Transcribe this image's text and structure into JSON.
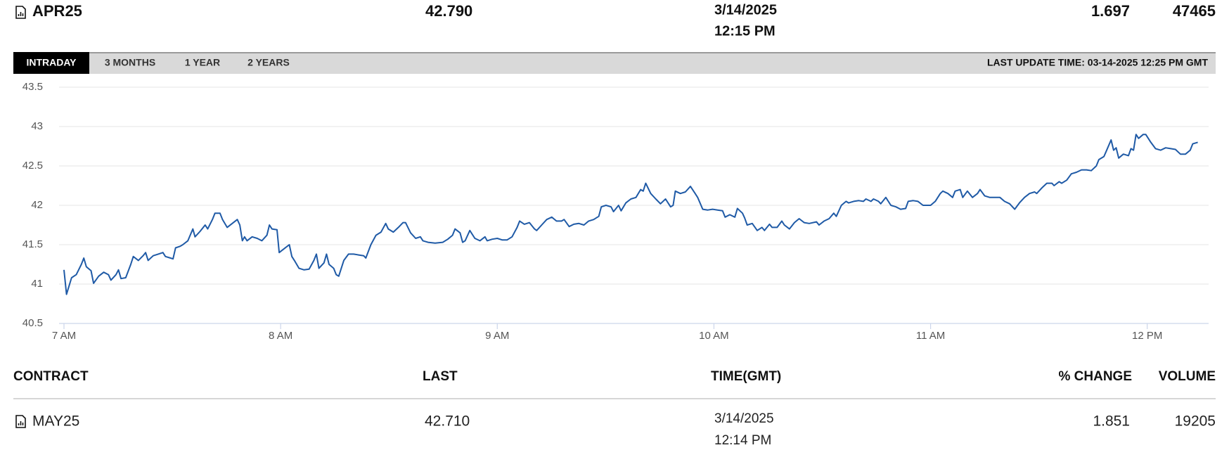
{
  "quote": {
    "contract": "APR25",
    "last": "42.790",
    "time_date": "3/14/2025",
    "time_clock": "12:15 PM",
    "change": "1.697",
    "volume": "47465"
  },
  "tabs": [
    "INTRADAY",
    "3 MONTHS",
    "1 YEAR",
    "2 YEARS"
  ],
  "last_update": "LAST UPDATE TIME: 03-14-2025 12:25 PM GMT",
  "chart_data": {
    "type": "line",
    "color": "#1f5aa6",
    "grid": true,
    "x": [
      420,
      420.7,
      422.1,
      423.4,
      424.8,
      425.5,
      426.2,
      427.5,
      428.2,
      429.6,
      431,
      432.3,
      433,
      434.4,
      435.1,
      435.8,
      437.1,
      438.5,
      439.2,
      440.6,
      441.9,
      442.6,
      443.3,
      444.7,
      446.1,
      447.4,
      448.1,
      449.5,
      450.2,
      450.9,
      452.2,
      452.9,
      454.3,
      455.7,
      456.3,
      457.7,
      459.1,
      459.8,
      461.1,
      461.8,
      463.2,
      463.9,
      465.2,
      466.6,
      468,
      468.7,
      469.4,
      470,
      470.7,
      472.1,
      473.5,
      474.8,
      476.2,
      476.9,
      477.6,
      479,
      479.6,
      481,
      482.4,
      483.1,
      483.8,
      485.1,
      486.5,
      487.9,
      489.2,
      489.9,
      490.6,
      492,
      492.7,
      493.4,
      494.7,
      495.4,
      496.1,
      497.5,
      498.8,
      500.2,
      501.6,
      503,
      503.6,
      505,
      506.4,
      507.8,
      509.1,
      509.8,
      511.2,
      512.6,
      513.9,
      514.6,
      516,
      517.4,
      518.7,
      519.4,
      520.8,
      522.8,
      524.9,
      526.3,
      527.6,
      528.3,
      529.7,
      530.4,
      531.1,
      532.4,
      533.8,
      535.2,
      536.6,
      537.2,
      538.6,
      540,
      541.4,
      542.7,
      544.1,
      545.5,
      546.2,
      547.5,
      548.9,
      550.3,
      550.9,
      552.3,
      553.7,
      555.1,
      556.4,
      557.8,
      558.5,
      559.9,
      561.2,
      562.6,
      564,
      565.3,
      566.7,
      568.1,
      568.8,
      570.1,
      571.5,
      572.2,
      573.6,
      574.3,
      575.6,
      577,
      578.4,
      579.7,
      580.4,
      581.1,
      582.5,
      583.9,
      585.2,
      586.6,
      588,
      588.7,
      589.3,
      590.7,
      592.1,
      593.5,
      594.8,
      595.5,
      596.9,
      598.3,
      599.6,
      601,
      602.4,
      603.1,
      604.4,
      605.8,
      606.5,
      607.9,
      608.5,
      609.2,
      610.6,
      612,
      613.3,
      614,
      615.4,
      616.1,
      617.5,
      618.8,
      619.5,
      620.9,
      622.3,
      623.6,
      625,
      626.4,
      628.4,
      629.1,
      630.5,
      631.9,
      633.2,
      633.9,
      635.3,
      636.6,
      637.3,
      638.7,
      640.1,
      641.4,
      642.1,
      643.5,
      644.2,
      645.6,
      646.2,
      647.6,
      649,
      650.4,
      651.7,
      653.1,
      653.8,
      655.2,
      656.5,
      657.9,
      660,
      661.3,
      662.7,
      663.4,
      664.8,
      666.1,
      666.8,
      668.2,
      668.9,
      670.2,
      671.6,
      673,
      673.7,
      675,
      676.4,
      677.8,
      679.2,
      680.5,
      681.9,
      683.3,
      684.6,
      686,
      687.4,
      688.8,
      689.4,
      690.8,
      692.2,
      693.6,
      694.2,
      695.6,
      696.3,
      697.7,
      699,
      700.4,
      701.8,
      703.2,
      704.5,
      705.9,
      706.6,
      708,
      708.6,
      710,
      710.7,
      711.4,
      712.1,
      713.4,
      714.8,
      715.5,
      716.2,
      716.9,
      717.6,
      718.9,
      719.6,
      721,
      722.3,
      723.7,
      725.1,
      726.5,
      727.8,
      729.2,
      730.6,
      731.9,
      732.6,
      734
    ],
    "values": [
      41.18,
      40.87,
      41.08,
      41.12,
      41.25,
      41.33,
      41.22,
      41.17,
      41.01,
      41.1,
      41.15,
      41.12,
      41.05,
      41.12,
      41.18,
      41.07,
      41.08,
      41.25,
      41.35,
      41.3,
      41.36,
      41.4,
      41.3,
      41.36,
      41.38,
      41.4,
      41.35,
      41.33,
      41.32,
      41.46,
      41.48,
      41.5,
      41.55,
      41.7,
      41.6,
      41.67,
      41.75,
      41.7,
      41.82,
      41.9,
      41.9,
      41.82,
      41.72,
      41.77,
      41.82,
      41.75,
      41.55,
      41.6,
      41.55,
      41.6,
      41.58,
      41.55,
      41.62,
      41.75,
      41.7,
      41.69,
      41.4,
      41.45,
      41.5,
      41.35,
      41.3,
      41.2,
      41.18,
      41.19,
      41.3,
      41.38,
      41.2,
      41.27,
      41.38,
      41.25,
      41.2,
      41.12,
      41.1,
      41.3,
      41.38,
      41.38,
      41.37,
      41.36,
      41.33,
      41.5,
      41.62,
      41.66,
      41.77,
      41.7,
      41.66,
      41.72,
      41.78,
      41.78,
      41.65,
      41.58,
      41.6,
      41.55,
      41.53,
      41.52,
      41.53,
      41.57,
      41.62,
      41.7,
      41.65,
      41.53,
      41.55,
      41.68,
      41.58,
      41.55,
      41.6,
      41.55,
      41.57,
      41.58,
      41.56,
      41.56,
      41.6,
      41.72,
      41.8,
      41.76,
      41.78,
      41.7,
      41.68,
      41.75,
      41.82,
      41.85,
      41.8,
      41.8,
      41.82,
      41.73,
      41.76,
      41.77,
      41.75,
      41.8,
      41.82,
      41.86,
      41.98,
      42,
      41.98,
      41.92,
      42,
      41.93,
      42.03,
      42.08,
      42.1,
      42.2,
      42.18,
      42.28,
      42.15,
      42.08,
      42.02,
      42.08,
      41.98,
      42,
      42.18,
      42.15,
      42.17,
      42.24,
      42.15,
      42.1,
      41.95,
      41.94,
      41.95,
      41.94,
      41.93,
      41.85,
      41.88,
      41.85,
      41.96,
      41.9,
      41.84,
      41.75,
      41.77,
      41.68,
      41.72,
      41.68,
      41.76,
      41.72,
      41.72,
      41.8,
      41.75,
      41.7,
      41.78,
      41.83,
      41.78,
      41.77,
      41.79,
      41.75,
      41.8,
      41.83,
      41.9,
      41.86,
      42,
      42.05,
      42.03,
      42.05,
      42.06,
      42.05,
      42.08,
      42.05,
      42.08,
      42.05,
      42.02,
      42.1,
      42,
      41.98,
      41.95,
      41.96,
      42.05,
      42.06,
      42.05,
      42,
      42,
      42.05,
      42.15,
      42.18,
      42.15,
      42.1,
      42.18,
      42.2,
      42.1,
      42.18,
      42.1,
      42.15,
      42.2,
      42.12,
      42.1,
      42.1,
      42.1,
      42.05,
      42.02,
      41.95,
      42.03,
      42.1,
      42.15,
      42.17,
      42.15,
      42.22,
      42.28,
      42.28,
      42.25,
      42.3,
      42.28,
      42.32,
      42.4,
      42.42,
      42.45,
      42.45,
      42.44,
      42.5,
      42.58,
      42.62,
      42.68,
      42.83,
      42.7,
      42.73,
      42.6,
      42.65,
      42.63,
      42.72,
      42.7,
      42.9,
      42.85,
      42.9,
      42.9,
      42.8,
      42.72,
      42.7,
      42.73,
      42.72,
      42.71,
      42.65,
      42.65,
      42.7,
      42.78,
      42.8
    ],
    "xlim": [
      420,
      737
    ],
    "xticks": [
      {
        "value": 420,
        "label": "7 AM"
      },
      {
        "value": 480,
        "label": "8 AM"
      },
      {
        "value": 540,
        "label": "9 AM"
      },
      {
        "value": 600,
        "label": "10 AM"
      },
      {
        "value": 660,
        "label": "11 AM"
      },
      {
        "value": 720,
        "label": "12 PM"
      }
    ],
    "ylim": [
      40.5,
      43.5
    ],
    "yticks": [
      40.5,
      41,
      41.5,
      42,
      42.5,
      43,
      43.5
    ]
  },
  "table": {
    "headers": [
      "CONTRACT",
      "LAST",
      "TIME(GMT)",
      "% CHANGE",
      "VOLUME"
    ],
    "rows": [
      {
        "contract": "MAY25",
        "last": "42.710",
        "time_date": "3/14/2025",
        "time_clock": "12:14 PM",
        "change": "1.851",
        "volume": "19205"
      }
    ]
  }
}
